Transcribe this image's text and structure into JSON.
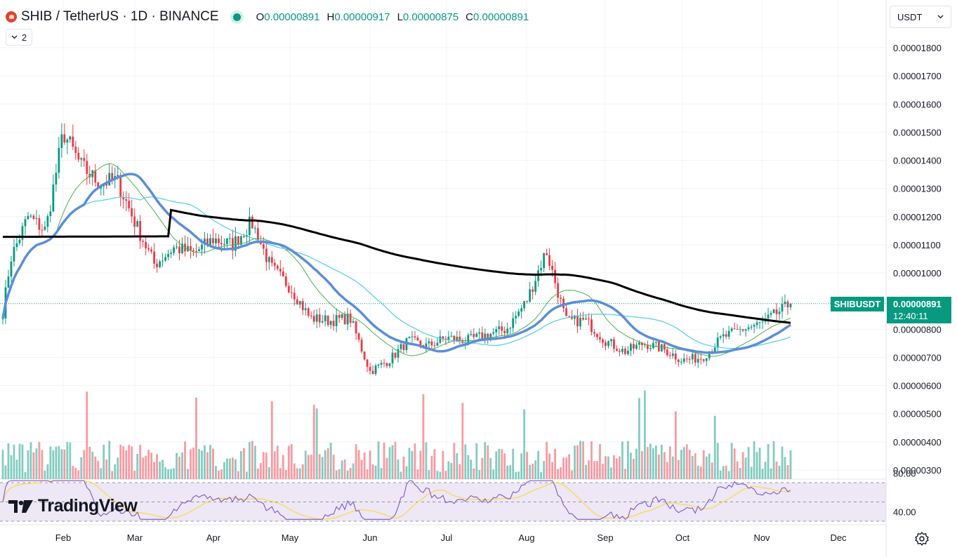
{
  "header": {
    "symbol": "SHIB / TetherUS · 1D · BINANCE",
    "open_label": "O",
    "open": "0.00000891",
    "high_label": "H",
    "high": "0.00000917",
    "low_label": "L",
    "low": "0.00000875",
    "close_label": "C",
    "close": "0.00000891",
    "collapse_count": "2"
  },
  "currency_select": "USDT",
  "price_label": {
    "symbol": "SHIBUSDT",
    "price": "0.00000891",
    "countdown": "12:40:11"
  },
  "logo": {
    "text": "TradingView"
  },
  "colors": {
    "up": "#089981",
    "down": "#f23645",
    "ma_thin_green": "#4caf50",
    "ma_cyan": "#4dd0e1",
    "ma_blue": "#5b8ed8",
    "ma_black": "#000000",
    "rsi_line": "#7e57c2",
    "rsi_ma": "#fdd835",
    "rsi_band": "#ede7f6"
  },
  "chart_data": {
    "type": "candlestick",
    "y_axis_ticks": [
      "0.00001800",
      "0.00001700",
      "0.00001600",
      "0.00001500",
      "0.00001400",
      "0.00001300",
      "0.00001200",
      "0.00001100",
      "0.00001000",
      "0.00000800",
      "0.00000700",
      "0.00000600",
      "0.00000500",
      "0.00000400",
      "0.00000300"
    ],
    "x_axis_ticks": [
      "Feb",
      "Mar",
      "Apr",
      "May",
      "Jun",
      "Jul",
      "Aug",
      "Sep",
      "Oct",
      "Nov",
      "Dec"
    ],
    "rsi_ticks": [
      "80.00",
      "40.00"
    ],
    "rsi_band": [
      30,
      70
    ],
    "current_price": 8.91e-06,
    "close_anchors": [
      [
        "Jan",
        8.6e-06
      ],
      [
        "Jan",
        1.05e-05
      ],
      [
        "Jan",
        1.2e-05
      ],
      [
        "Jan",
        1.15e-05
      ],
      [
        "Feb",
        1.5e-05
      ],
      [
        "Feb",
        1.38e-05
      ],
      [
        "Feb",
        1.32e-05
      ],
      [
        "Feb",
        1.33e-05
      ],
      [
        "Mar",
        1.18e-05
      ],
      [
        "Mar",
        1.03e-05
      ],
      [
        "Mar",
        1.09e-05
      ],
      [
        "Mar",
        1.07e-05
      ],
      [
        "Apr",
        1.12e-05
      ],
      [
        "Apr",
        1.1e-05
      ],
      [
        "Apr",
        1.18e-05
      ],
      [
        "Apr",
        1.02e-05
      ],
      [
        "May",
        9.5e-06
      ],
      [
        "May",
        8.4e-06
      ],
      [
        "May",
        8.3e-06
      ],
      [
        "May",
        8.4e-06
      ],
      [
        "Jun",
        6.5e-06
      ],
      [
        "Jun",
        6.9e-06
      ],
      [
        "Jun",
        7.6e-06
      ],
      [
        "Jun",
        7.4e-06
      ],
      [
        "Jul",
        7.7e-06
      ],
      [
        "Jul",
        7.6e-06
      ],
      [
        "Jul",
        7.8e-06
      ],
      [
        "Jul",
        8e-06
      ],
      [
        "Aug",
        9e-06
      ],
      [
        "Aug",
        1.08e-05
      ],
      [
        "Aug",
        8.3e-06
      ],
      [
        "Aug",
        8.3e-06
      ],
      [
        "Sep",
        7.6e-06
      ],
      [
        "Sep",
        7.2e-06
      ],
      [
        "Sep",
        7.5e-06
      ],
      [
        "Sep",
        7.3e-06
      ],
      [
        "Oct",
        6.9e-06
      ],
      [
        "Oct",
        7e-06
      ],
      [
        "Oct",
        7.7e-06
      ],
      [
        "Oct",
        8e-06
      ],
      [
        "Nov",
        8.2e-06
      ],
      [
        "Nov",
        8.91e-06
      ]
    ]
  }
}
